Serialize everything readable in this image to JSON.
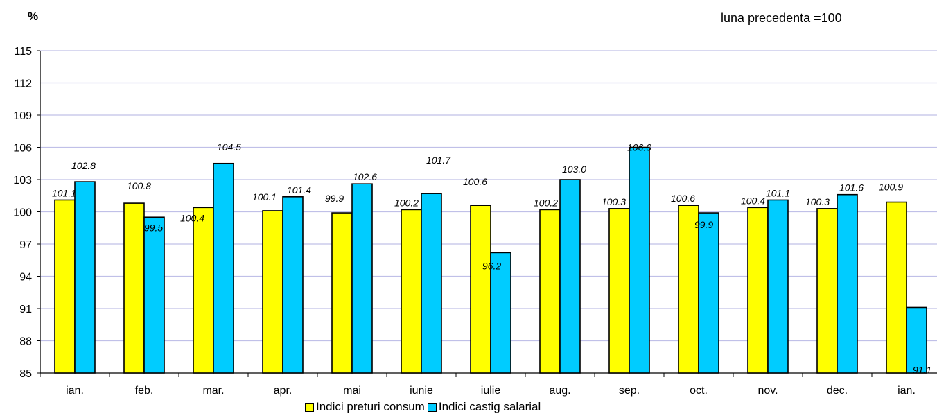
{
  "page": {
    "unit_label": "%",
    "base_note": "luna precedenta =100"
  },
  "colors": {
    "series_1": "#FFFF00",
    "series_2": "#00CCFF",
    "gridline": "#C0C0E8"
  },
  "chart_data": {
    "type": "bar",
    "ylabel": "%",
    "ylim": [
      85,
      115
    ],
    "yticks": [
      85,
      88,
      91,
      94,
      97,
      100,
      103,
      106,
      109,
      112,
      115
    ],
    "grid": true,
    "legend_position": "bottom",
    "categories": [
      "ian.",
      "feb.",
      "mar.",
      "apr.",
      "mai",
      "iunie",
      "iulie",
      "aug.",
      "sep.",
      "oct.",
      "nov.",
      "dec.",
      "ian."
    ],
    "series": [
      {
        "name": "Indici preturi consum",
        "values": [
          101.1,
          100.8,
          100.4,
          100.1,
          99.9,
          100.2,
          100.6,
          100.2,
          100.3,
          100.6,
          100.4,
          100.3,
          100.9
        ],
        "labels": [
          "101.1",
          "100.8",
          "100.4",
          "100.1",
          "99.9",
          "100.2",
          "100.6",
          "100.2",
          "100.3",
          "100.6",
          "100.4",
          "100.3",
          "100.9"
        ]
      },
      {
        "name": "Indici castig salarial",
        "values": [
          102.8,
          99.5,
          104.5,
          101.4,
          102.6,
          101.7,
          96.2,
          103.0,
          106.0,
          99.9,
          101.1,
          101.6,
          91.1
        ],
        "labels": [
          "102.8",
          "99.5",
          "104.5",
          "101.4",
          "102.6",
          "101.7",
          "96.2",
          "103.0",
          "106.0",
          "99.9",
          "101.1",
          "101.6",
          "91.1"
        ]
      }
    ]
  }
}
